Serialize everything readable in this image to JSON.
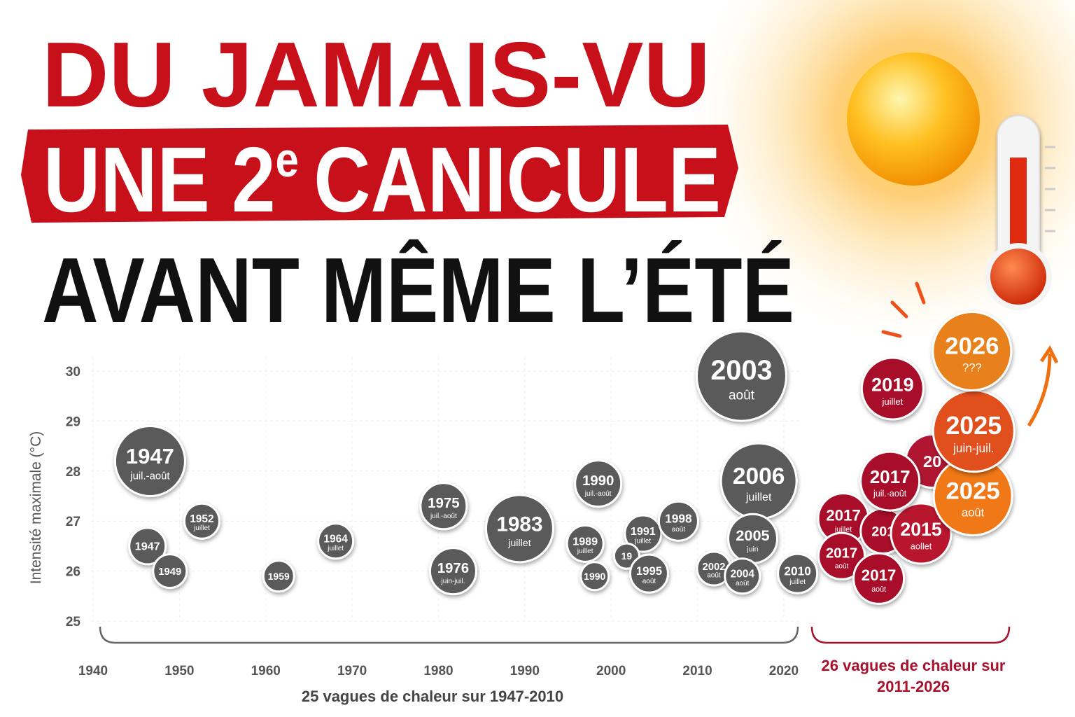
{
  "headline": {
    "line1": "DU JAMAIS-VU",
    "line2_pre": "UNE 2",
    "line2_sup": "e",
    "line2_post": "CANICULE",
    "line3": "AVANT MÊME L’ÉTÉ"
  },
  "chart_data": {
    "type": "bubble",
    "y_label": "Intensité maximale (°C)",
    "xlim": [
      1940,
      2047
    ],
    "xticks": [
      1940,
      1950,
      1960,
      1970,
      1980,
      1990,
      2000,
      2010,
      2020
    ],
    "ylim": [
      25,
      30
    ],
    "yticks": [
      25,
      26,
      27,
      28,
      29,
      30
    ],
    "grid": true,
    "series": [
      {
        "name": "25 vagues de chaleur sur 1947-2010",
        "color": "#5a5a5a",
        "x": [
          1946.6,
          1946.3,
          1948.9,
          1952.6,
          1961.5,
          1968.1,
          1980.6,
          1981.7,
          1989.4,
          1998.5,
          1997.0,
          1998.1,
          2003.7,
          2001.8,
          2004.4,
          2007.8,
          2015.1,
          2017.1,
          2016.4,
          2011.9,
          2015.2,
          2021.6
        ],
        "values": [
          28.2,
          26.5,
          26.0,
          27.0,
          25.9,
          26.6,
          27.3,
          26.0,
          26.85,
          27.75,
          26.55,
          25.9,
          26.75,
          26.3,
          25.95,
          27.0,
          29.9,
          27.8,
          26.65,
          26.05,
          25.9,
          25.95
        ],
        "sizes": [
          50,
          26,
          24,
          25,
          22,
          25,
          33,
          33,
          48,
          33,
          26,
          20,
          26,
          18,
          27,
          28,
          64,
          54,
          35,
          24,
          25,
          28
        ],
        "labels": [
          "1947",
          "1947",
          "1949",
          "1952",
          "1959",
          "1964",
          "1975",
          "1976",
          "1983",
          "1990",
          "1989",
          "1990",
          "1991",
          "19",
          "1995",
          "1998",
          "2003",
          "2006",
          "2005",
          "2002",
          "2004",
          "2010"
        ],
        "sublabels": [
          "juil.-août",
          null,
          null,
          "juillet",
          null,
          "juillet",
          "juil.-août",
          "juin-juil.",
          "juillet",
          "juil.-août",
          "juillet",
          null,
          "juillet",
          null,
          "août",
          "août",
          "août",
          "juillet",
          "juin",
          "août",
          "août",
          "juillet"
        ]
      },
      {
        "name": "26 vagues de chaleur sur 2011-2026",
        "color": "#a8102c",
        "x": [
          2037.2,
          2026.9,
          2026.7,
          2031.5,
          2035.9,
          2031.0,
          2032.3,
          2032.6,
          2041.9,
          2042.0,
          2041.8
        ],
        "values": [
          28.2,
          27.05,
          26.3,
          26.8,
          26.75,
          25.85,
          27.8,
          29.65,
          27.5,
          28.8,
          30.4
        ],
        "sizes": [
          38,
          36,
          33,
          32,
          43,
          36,
          42,
          44,
          56,
          58,
          56
        ],
        "labels": [
          "20",
          "2017",
          "2017",
          "201",
          "2015",
          "2017",
          "2017",
          "2019",
          "2025",
          "2025",
          "2026"
        ],
        "sublabels": [
          null,
          "juillet",
          "août",
          null,
          "aollet",
          "août",
          "juil.-août",
          "juillet",
          "août",
          "juin-juil.",
          "???"
        ],
        "colors": [
          "#b01830",
          "#a8102c",
          "#a8102c",
          "#a8102c",
          "#b8142e",
          "#a8102c",
          "#a8102c",
          "#a8102c",
          "#f07812",
          "#e0501a",
          "#e8801a"
        ]
      }
    ]
  }
}
